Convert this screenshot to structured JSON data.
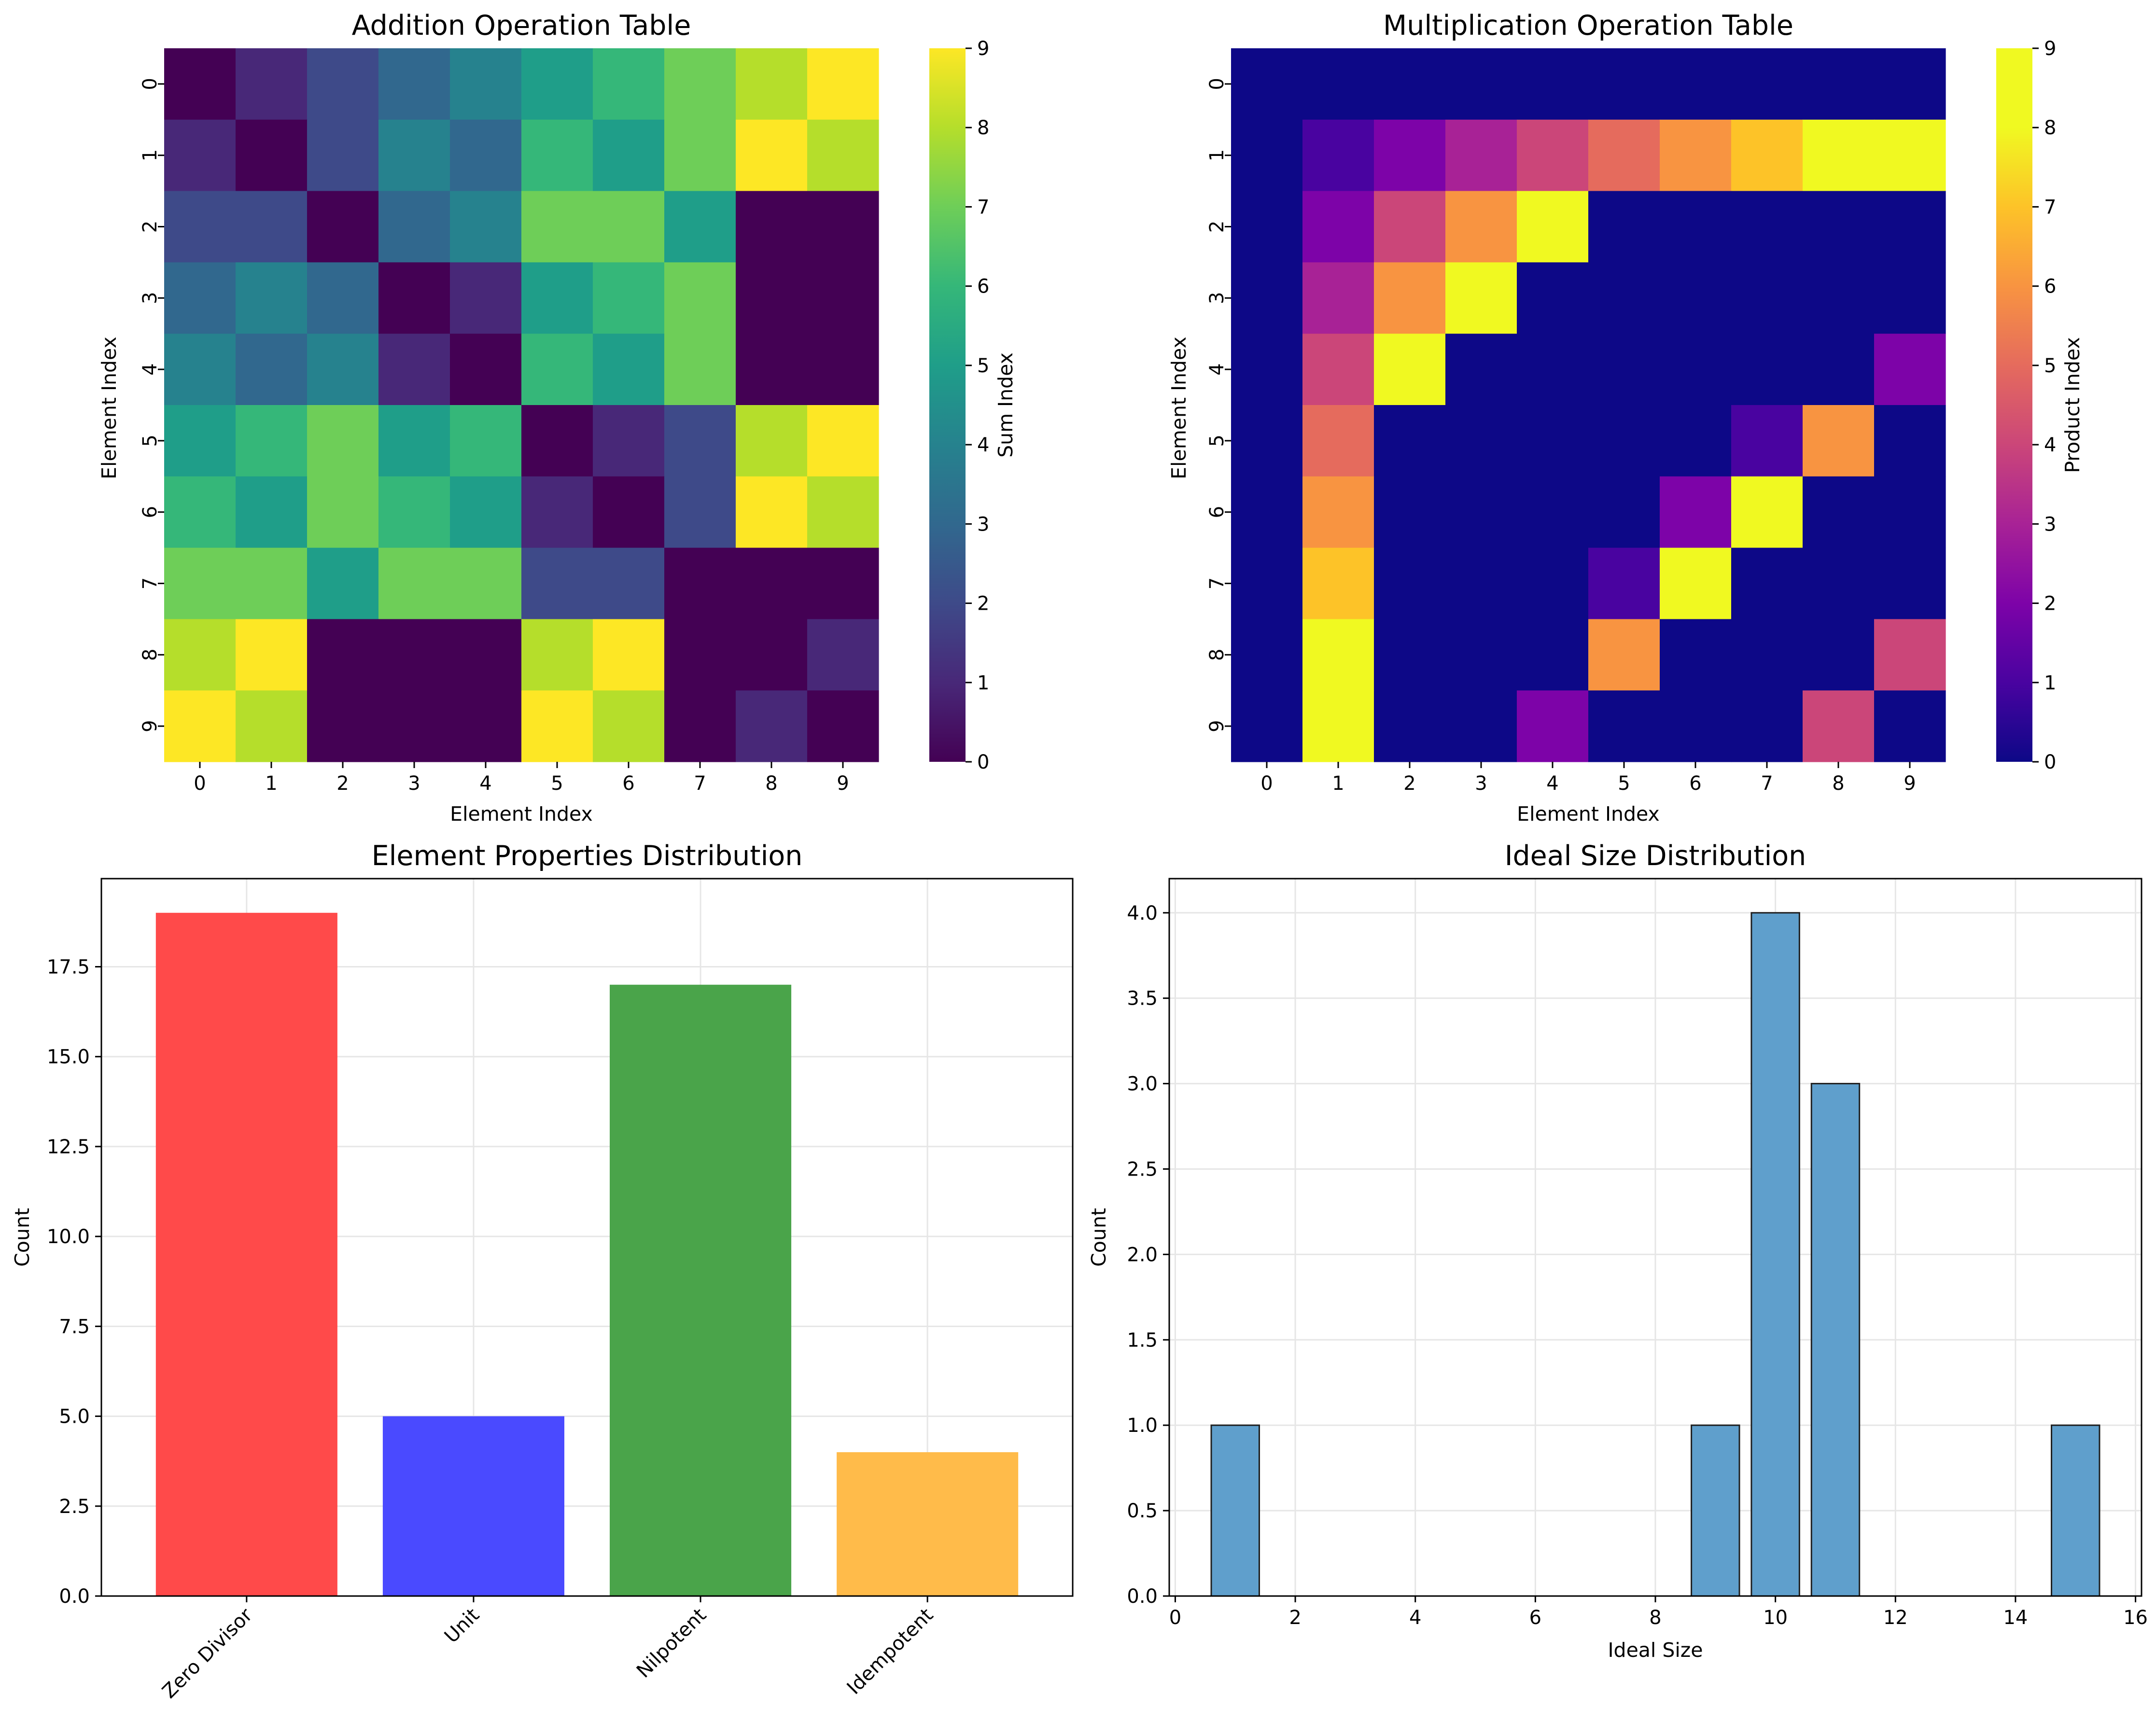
{
  "chart_data": [
    {
      "type": "heatmap",
      "title": "Addition Operation Table",
      "xlabel": "Element Index",
      "ylabel": "Element Index",
      "colorbar_label": "Sum Index",
      "colormap": "viridis",
      "vmin": 0,
      "vmax": 9,
      "x_ticks": [
        "0",
        "1",
        "2",
        "3",
        "4",
        "5",
        "6",
        "7",
        "8",
        "9"
      ],
      "y_ticks": [
        "0",
        "1",
        "2",
        "3",
        "4",
        "5",
        "6",
        "7",
        "8",
        "9"
      ],
      "colorbar_ticks": [
        "0",
        "1",
        "2",
        "3",
        "4",
        "5",
        "6",
        "7",
        "8",
        "9"
      ],
      "matrix": [
        [
          0,
          1,
          2,
          3,
          4,
          5,
          6,
          7,
          8,
          9
        ],
        [
          1,
          0,
          2,
          4,
          3,
          6,
          5,
          7,
          9,
          8
        ],
        [
          2,
          2,
          0,
          3,
          4,
          7,
          7,
          5,
          0,
          0
        ],
        [
          3,
          4,
          3,
          0,
          1,
          5,
          6,
          7,
          0,
          0
        ],
        [
          4,
          3,
          4,
          1,
          0,
          6,
          5,
          7,
          0,
          0
        ],
        [
          5,
          6,
          7,
          5,
          6,
          0,
          1,
          2,
          8,
          9
        ],
        [
          6,
          5,
          7,
          6,
          5,
          1,
          0,
          2,
          9,
          8
        ],
        [
          7,
          7,
          5,
          7,
          7,
          2,
          2,
          0,
          0,
          0
        ],
        [
          8,
          9,
          0,
          0,
          0,
          8,
          9,
          0,
          0,
          1
        ],
        [
          9,
          8,
          0,
          0,
          0,
          9,
          8,
          0,
          1,
          0
        ]
      ]
    },
    {
      "type": "heatmap",
      "title": "Multiplication Operation Table",
      "xlabel": "Element Index",
      "ylabel": "Element Index",
      "colorbar_label": "Product Index",
      "colormap": "plasma",
      "vmin": 0,
      "vmax": 9,
      "x_ticks": [
        "0",
        "1",
        "2",
        "3",
        "4",
        "5",
        "6",
        "7",
        "8",
        "9"
      ],
      "y_ticks": [
        "0",
        "1",
        "2",
        "3",
        "4",
        "5",
        "6",
        "7",
        "8",
        "9"
      ],
      "colorbar_ticks": [
        "0",
        "1",
        "2",
        "3",
        "4",
        "5",
        "6",
        "7",
        "8",
        "9"
      ],
      "matrix": [
        [
          0,
          0,
          0,
          0,
          0,
          0,
          0,
          0,
          0,
          0
        ],
        [
          0,
          1,
          2,
          3,
          4,
          5,
          6,
          7,
          8,
          9
        ],
        [
          0,
          2,
          4,
          6,
          8,
          0,
          0,
          0,
          0,
          0
        ],
        [
          0,
          3,
          6,
          9,
          0,
          0,
          0,
          0,
          0,
          0
        ],
        [
          0,
          4,
          8,
          0,
          0,
          0,
          0,
          0,
          0,
          2
        ],
        [
          0,
          5,
          0,
          0,
          0,
          0,
          0,
          1,
          6,
          0
        ],
        [
          0,
          6,
          0,
          0,
          0,
          0,
          2,
          8,
          0,
          0
        ],
        [
          0,
          7,
          0,
          0,
          0,
          1,
          8,
          0,
          0,
          0
        ],
        [
          0,
          8,
          0,
          0,
          0,
          6,
          0,
          0,
          0,
          4
        ],
        [
          0,
          9,
          0,
          0,
          2,
          0,
          0,
          0,
          4,
          0
        ]
      ]
    },
    {
      "type": "bar",
      "title": "Element Properties Distribution",
      "xlabel": "",
      "ylabel": "Count",
      "categories": [
        "Zero Divisor",
        "Unit",
        "Nilpotent",
        "Idempotent"
      ],
      "values": [
        19,
        5,
        17,
        4
      ],
      "colors": [
        "#ff4a4a",
        "#4a4aff",
        "#4aa44a",
        "#ffbb4a"
      ],
      "ylim": [
        0,
        19.95
      ],
      "y_ticks": [
        "0.0",
        "2.5",
        "5.0",
        "7.5",
        "10.0",
        "12.5",
        "15.0",
        "17.5"
      ],
      "grid": true
    },
    {
      "type": "bar",
      "title": "Ideal Size Distribution",
      "xlabel": "Ideal Size",
      "ylabel": "Count",
      "bars": [
        {
          "x": 1,
          "count": 1
        },
        {
          "x": 9,
          "count": 1
        },
        {
          "x": 10,
          "count": 4
        },
        {
          "x": 11,
          "count": 3
        },
        {
          "x": 15,
          "count": 1
        }
      ],
      "bar_width": 0.8,
      "color": "#5f9fcc",
      "xlim": [
        -0.1,
        16.1
      ],
      "ylim": [
        0,
        4.2
      ],
      "x_ticks": [
        "0",
        "2",
        "4",
        "6",
        "8",
        "10",
        "12",
        "14",
        "16"
      ],
      "y_ticks": [
        "0.0",
        "0.5",
        "1.0",
        "1.5",
        "2.0",
        "2.5",
        "3.0",
        "3.5",
        "4.0"
      ],
      "grid": true
    }
  ]
}
